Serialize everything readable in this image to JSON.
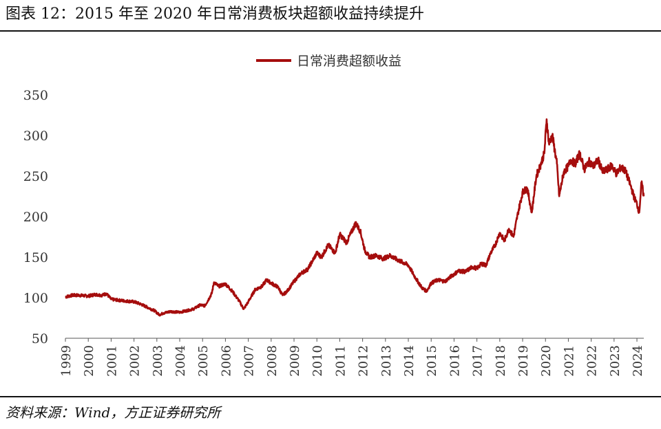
{
  "figure": {
    "title": "图表 12：2015 年至 2020 年日常消费板块超额收益持续提升",
    "source": "资料来源：Wind，方正证券研究所"
  },
  "chart_data": {
    "type": "line",
    "title": "",
    "xlabel": "",
    "ylabel": "",
    "ylim": [
      50,
      350
    ],
    "yticks": [
      50,
      100,
      150,
      200,
      250,
      300,
      350
    ],
    "xlim": [
      1999.0,
      2024.3
    ],
    "xticks": [
      "1999",
      "2000",
      "2001",
      "2002",
      "2003",
      "2004",
      "2005",
      "2006",
      "2007",
      "2008",
      "2009",
      "2010",
      "2011",
      "2012",
      "2013",
      "2014",
      "2015",
      "2016",
      "2017",
      "2018",
      "2019",
      "2020",
      "2021",
      "2022",
      "2023",
      "2024"
    ],
    "grid": false,
    "legend_position": "top-center",
    "colors": {
      "series": "#a50d0d"
    },
    "series": [
      {
        "name": "日常消费超额收益",
        "color": "#a50d0d",
        "x": [
          1999.0,
          1999.3,
          1999.6,
          2000.0,
          2000.3,
          2000.6,
          2000.8,
          2001.0,
          2001.3,
          2001.6,
          2002.0,
          2002.3,
          2002.6,
          2002.9,
          2003.1,
          2003.3,
          2003.6,
          2004.0,
          2004.3,
          2004.6,
          2004.9,
          2005.1,
          2005.4,
          2005.5,
          2005.7,
          2006.0,
          2006.3,
          2006.6,
          2006.8,
          2007.0,
          2007.3,
          2007.6,
          2007.8,
          2008.0,
          2008.3,
          2008.5,
          2008.7,
          2009.0,
          2009.3,
          2009.6,
          2009.8,
          2010.0,
          2010.2,
          2010.5,
          2010.8,
          2011.0,
          2011.3,
          2011.5,
          2011.7,
          2011.9,
          2012.1,
          2012.3,
          2012.6,
          2012.9,
          2013.2,
          2013.5,
          2013.8,
          2014.0,
          2014.3,
          2014.6,
          2014.8,
          2015.0,
          2015.3,
          2015.6,
          2015.9,
          2016.2,
          2016.5,
          2016.8,
          2017.0,
          2017.2,
          2017.4,
          2017.6,
          2017.8,
          2018.0,
          2018.2,
          2018.4,
          2018.6,
          2018.8,
          2019.0,
          2019.2,
          2019.4,
          2019.6,
          2019.8,
          2019.95,
          2020.05,
          2020.15,
          2020.3,
          2020.5,
          2020.6,
          2020.8,
          2021.0,
          2021.1,
          2021.3,
          2021.5,
          2021.7,
          2021.9,
          2022.1,
          2022.3,
          2022.5,
          2022.7,
          2022.9,
          2023.1,
          2023.3,
          2023.5,
          2023.7,
          2023.9,
          2024.0,
          2024.1,
          2024.2,
          2024.3
        ],
        "values": [
          101,
          103,
          103,
          102,
          104,
          103,
          105,
          98,
          97,
          96,
          95,
          92,
          88,
          84,
          79,
          81,
          83,
          82,
          84,
          86,
          91,
          90,
          105,
          119,
          114,
          117,
          108,
          96,
          86,
          95,
          110,
          114,
          122,
          118,
          113,
          103,
          108,
          120,
          130,
          135,
          145,
          155,
          150,
          165,
          155,
          178,
          168,
          180,
          192,
          182,
          158,
          150,
          152,
          148,
          152,
          147,
          143,
          140,
          125,
          112,
          108,
          118,
          122,
          120,
          127,
          133,
          132,
          138,
          136,
          142,
          140,
          155,
          165,
          180,
          170,
          185,
          175,
          205,
          230,
          235,
          205,
          250,
          265,
          278,
          320,
          290,
          300,
          265,
          225,
          255,
          262,
          270,
          265,
          278,
          258,
          268,
          262,
          270,
          255,
          258,
          263,
          253,
          261,
          256,
          240,
          222,
          216,
          205,
          242,
          225
        ]
      }
    ]
  }
}
